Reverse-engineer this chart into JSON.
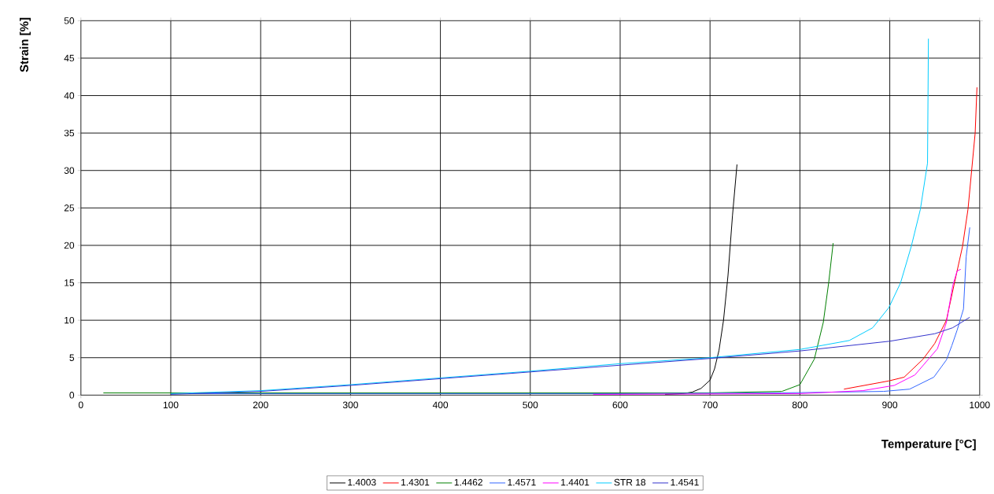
{
  "chart_data": {
    "type": "line",
    "xlabel": "Temperature [°C]",
    "ylabel": "Strain [%]",
    "xlim": [
      0,
      1000
    ],
    "ylim": [
      0,
      50
    ],
    "xticks": [
      0,
      100,
      200,
      300,
      400,
      500,
      600,
      700,
      800,
      900,
      1000
    ],
    "yticks": [
      0,
      5,
      10,
      15,
      20,
      25,
      30,
      35,
      40,
      45,
      50
    ],
    "grid": true,
    "legend": "bottom",
    "marker": "none",
    "line_style": "solid",
    "series": [
      {
        "name": "1.4003",
        "color": "#000000",
        "x": [
          650,
          670,
          680,
          690,
          700,
          705,
          710,
          715,
          720,
          725,
          730
        ],
        "values": [
          0.1,
          0.2,
          0.4,
          0.9,
          2.0,
          3.5,
          6,
          10,
          16,
          24,
          30.8
        ]
      },
      {
        "name": "1.4301",
        "color": "#ff0000",
        "x": [
          849,
          899,
          916,
          937,
          950,
          963,
          972,
          981,
          987,
          991,
          995,
          997
        ],
        "values": [
          0.8,
          1.9,
          2.4,
          4.8,
          6.9,
          10,
          15,
          19.9,
          24.8,
          29.9,
          35,
          41.1
        ]
      },
      {
        "name": "1.4462",
        "color": "#008000",
        "x": [
          25,
          350,
          700,
          780,
          800,
          816,
          826,
          832,
          837
        ],
        "values": [
          0.3,
          0.3,
          0.3,
          0.5,
          1.4,
          4.8,
          9.7,
          15,
          20.3
        ]
      },
      {
        "name": "1.4571",
        "color": "#3366ff",
        "x": [
          120,
          600,
          780,
          893,
          922,
          949,
          963,
          969,
          975,
          982,
          985,
          989
        ],
        "values": [
          0.2,
          0.2,
          0.3,
          0.5,
          0.8,
          2.4,
          4.7,
          6.6,
          8.7,
          11.5,
          18.5,
          22.4
        ]
      },
      {
        "name": "1.4401",
        "color": "#ff00ff",
        "x": [
          570,
          800,
          870,
          905,
          928,
          943,
          953,
          963,
          970,
          975,
          979
        ],
        "values": [
          0.1,
          0.2,
          0.6,
          1.3,
          2.7,
          4.8,
          6.2,
          9.7,
          14.6,
          16.6,
          16.8
        ]
      },
      {
        "name": "STR 18",
        "color": "#00ccff",
        "x": [
          100,
          200,
          300,
          400,
          500,
          600,
          700,
          800,
          855,
          881,
          899,
          912,
          924,
          934,
          942,
          943
        ],
        "values": [
          0.2,
          0.6,
          1.4,
          2.3,
          3.2,
          4.2,
          5.0,
          6.1,
          7.3,
          9,
          11.7,
          15,
          19.9,
          24.8,
          31,
          47.6
        ]
      },
      {
        "name": "1.4541",
        "color": "#3333cc",
        "x": [
          100,
          200,
          300,
          400,
          500,
          600,
          700,
          800,
          900,
          950,
          970,
          989
        ],
        "values": [
          0.1,
          0.5,
          1.3,
          2.2,
          3.1,
          4.0,
          4.9,
          5.9,
          7.2,
          8.2,
          9.0,
          10.4
        ]
      }
    ]
  }
}
